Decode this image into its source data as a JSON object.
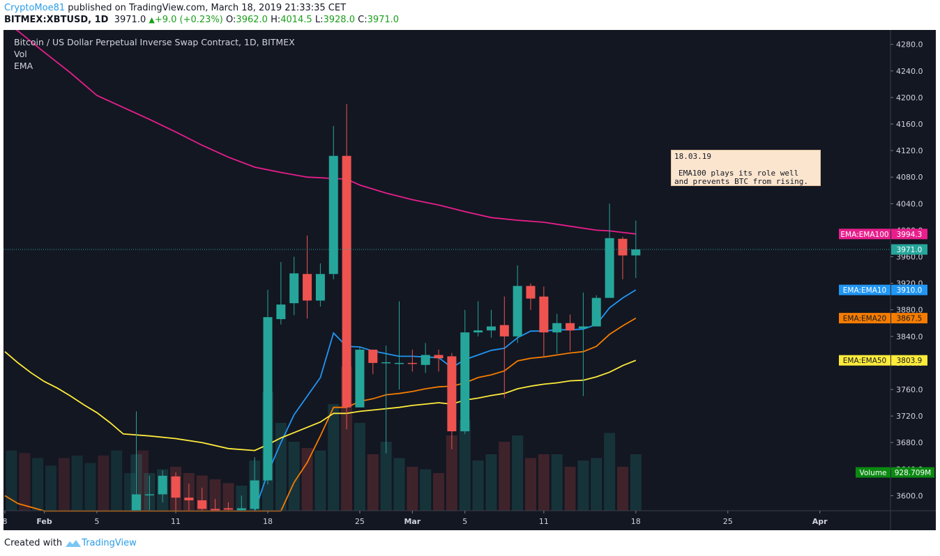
{
  "header": {
    "author": "CryptoMoe81",
    "published": "published on TradingView.com, March 18, 2019 21:33:35 CET",
    "symbol": "BITMEX:XBTUSD, 1D",
    "last": "3971.0",
    "change": "+9.0 (+0.23%)",
    "o_label": "O:",
    "o": "3962.0",
    "h_label": "H:",
    "h": "4014.5",
    "l_label": "L:",
    "l": "3928.0",
    "c_label": "C:",
    "c": "3971.0"
  },
  "legend": {
    "title": "Bitcoin / US Dollar Perpetual Inverse Swap Contract, 1D, BITMEX",
    "vol": "Vol",
    "ema": "EMA"
  },
  "annotation": {
    "date": "18.03.19",
    "text_line1": "EMA100 plays its role well",
    "text_line2": "and prevents BTC from rising."
  },
  "footer": {
    "created": "Created with",
    "brand": "TradingView"
  },
  "colors": {
    "background": "#131722",
    "up": "#26a69a",
    "down": "#ef5350",
    "ema10": "#2196f3",
    "ema20": "#f57c00",
    "ema50": "#ffeb3b",
    "ema100": "#e91e8c",
    "volume_badge": "#0b8a12"
  },
  "chart_data": {
    "type": "candlestick",
    "title": "Bitcoin / US Dollar Perpetual Inverse Swap Contract, 1D, BITMEX",
    "ylim": [
      3577,
      4297
    ],
    "y_ticks": [
      3600,
      3640,
      3680,
      3720,
      3760,
      3800,
      3840,
      3880,
      3920,
      3960,
      4000,
      4040,
      4080,
      4120,
      4160,
      4200,
      4240,
      4280
    ],
    "x_ticks": [
      {
        "date": "2019-01-29",
        "label": "8"
      },
      {
        "date": "2019-02-01",
        "label": "Feb"
      },
      {
        "date": "2019-02-05",
        "label": "5"
      },
      {
        "date": "2019-02-11",
        "label": "11"
      },
      {
        "date": "2019-02-18",
        "label": "18"
      },
      {
        "date": "2019-02-25",
        "label": "25"
      },
      {
        "date": "2019-03-01",
        "label": "Mar"
      },
      {
        "date": "2019-03-05",
        "label": "5"
      },
      {
        "date": "2019-03-11",
        "label": "11"
      },
      {
        "date": "2019-03-18",
        "label": "18"
      },
      {
        "date": "2019-03-25",
        "label": "25"
      },
      {
        "date": "2019-04-01",
        "label": "Apr"
      }
    ],
    "candles": [
      {
        "date": "2019-02-08",
        "o": 3577,
        "h": 3727,
        "l": 3577,
        "c": 3602,
        "v": 0.45
      },
      {
        "date": "2019-02-09",
        "o": 3602,
        "h": 3630,
        "l": 3577,
        "c": 3602,
        "v": 0.3
      },
      {
        "date": "2019-02-10",
        "o": 3602,
        "h": 3638,
        "l": 3590,
        "c": 3630,
        "v": 0.33
      },
      {
        "date": "2019-02-11",
        "o": 3629,
        "h": 3635,
        "l": 3577,
        "c": 3597,
        "v": 0.35
      },
      {
        "date": "2019-02-12",
        "o": 3597,
        "h": 3618,
        "l": 3577,
        "c": 3593,
        "v": 0.3
      },
      {
        "date": "2019-02-13",
        "o": 3593,
        "h": 3612,
        "l": 3577,
        "c": 3580,
        "v": 0.28
      },
      {
        "date": "2019-02-14",
        "o": 3580,
        "h": 3595,
        "l": 3577,
        "c": 3577,
        "v": 0.25
      },
      {
        "date": "2019-02-15",
        "o": 3581,
        "h": 3590,
        "l": 3577,
        "c": 3579,
        "v": 0.22
      },
      {
        "date": "2019-02-16",
        "o": 3578,
        "h": 3600,
        "l": 3577,
        "c": 3581,
        "v": 0.2
      },
      {
        "date": "2019-02-17",
        "o": 3580,
        "h": 3658,
        "l": 3577,
        "c": 3623,
        "v": 0.4
      },
      {
        "date": "2019-02-18",
        "o": 3623,
        "h": 3910,
        "l": 3617,
        "c": 3869,
        "v": 0.95
      },
      {
        "date": "2019-02-19",
        "o": 3866,
        "h": 3952,
        "l": 3858,
        "c": 3888,
        "v": 0.7
      },
      {
        "date": "2019-02-20",
        "o": 3890,
        "h": 3960,
        "l": 3872,
        "c": 3935,
        "v": 0.55
      },
      {
        "date": "2019-02-21",
        "o": 3934,
        "h": 3992,
        "l": 3867,
        "c": 3894,
        "v": 0.5
      },
      {
        "date": "2019-02-22",
        "o": 3894,
        "h": 3950,
        "l": 3885,
        "c": 3934,
        "v": 0.48
      },
      {
        "date": "2019-02-23",
        "o": 3934,
        "h": 4157,
        "l": 3926,
        "c": 4112,
        "v": 0.85
      },
      {
        "date": "2019-02-24",
        "o": 4112,
        "h": 4190,
        "l": 3700,
        "c": 3733,
        "v": 1.15
      },
      {
        "date": "2019-02-25",
        "o": 3733,
        "h": 3825,
        "l": 3735,
        "c": 3820,
        "v": 0.7
      },
      {
        "date": "2019-02-26",
        "o": 3820,
        "h": 3820,
        "l": 3783,
        "c": 3800,
        "v": 0.45
      },
      {
        "date": "2019-02-27",
        "o": 3801,
        "h": 3826,
        "l": 3664,
        "c": 3801,
        "v": 0.55
      },
      {
        "date": "2019-02-28",
        "o": 3800,
        "h": 3893,
        "l": 3760,
        "c": 3800,
        "v": 0.42
      },
      {
        "date": "2019-03-01",
        "o": 3800,
        "h": 3820,
        "l": 3787,
        "c": 3799,
        "v": 0.35
      },
      {
        "date": "2019-03-02",
        "o": 3797,
        "h": 3830,
        "l": 3785,
        "c": 3812,
        "v": 0.33
      },
      {
        "date": "2019-03-03",
        "o": 3812,
        "h": 3820,
        "l": 3787,
        "c": 3807,
        "v": 0.3
      },
      {
        "date": "2019-03-04",
        "o": 3810,
        "h": 3815,
        "l": 3670,
        "c": 3697,
        "v": 0.6
      },
      {
        "date": "2019-03-05",
        "o": 3697,
        "h": 3880,
        "l": 3693,
        "c": 3846,
        "v": 0.72
      },
      {
        "date": "2019-03-06",
        "o": 3846,
        "h": 3893,
        "l": 3840,
        "c": 3849,
        "v": 0.4
      },
      {
        "date": "2019-03-07",
        "o": 3849,
        "h": 3880,
        "l": 3838,
        "c": 3855,
        "v": 0.45
      },
      {
        "date": "2019-03-08",
        "o": 3857,
        "h": 3900,
        "l": 3747,
        "c": 3840,
        "v": 0.55
      },
      {
        "date": "2019-03-09",
        "o": 3840,
        "h": 3947,
        "l": 3830,
        "c": 3916,
        "v": 0.6
      },
      {
        "date": "2019-03-10",
        "o": 3916,
        "h": 3920,
        "l": 3880,
        "c": 3897,
        "v": 0.42
      },
      {
        "date": "2019-03-11",
        "o": 3900,
        "h": 3915,
        "l": 3810,
        "c": 3846,
        "v": 0.45
      },
      {
        "date": "2019-03-12",
        "o": 3846,
        "h": 3874,
        "l": 3814,
        "c": 3860,
        "v": 0.45
      },
      {
        "date": "2019-03-13",
        "o": 3860,
        "h": 3873,
        "l": 3818,
        "c": 3849,
        "v": 0.35
      },
      {
        "date": "2019-03-14",
        "o": 3852,
        "h": 3906,
        "l": 3750,
        "c": 3855,
        "v": 0.4
      },
      {
        "date": "2019-03-15",
        "o": 3855,
        "h": 3902,
        "l": 3855,
        "c": 3898,
        "v": 0.42
      },
      {
        "date": "2019-03-16",
        "o": 3898,
        "h": 4040,
        "l": 3898,
        "c": 3988,
        "v": 0.62
      },
      {
        "date": "2019-03-17",
        "o": 3987,
        "h": 3990,
        "l": 3926,
        "c": 3962,
        "v": 0.35
      },
      {
        "date": "2019-03-18",
        "o": 3962,
        "h": 4014.5,
        "l": 3928,
        "c": 3971,
        "v": 0.45
      }
    ],
    "volume_bars_before": [
      0.48,
      0.46,
      0.42,
      0.36,
      0.42,
      0.44,
      0.38,
      0.44,
      0.48,
      0.3,
      0.48
    ],
    "series": [
      {
        "name": "EMA:EMA10",
        "color": "#2196f3",
        "last": "3910.0",
        "points": [
          [
            "2019-02-17",
            3577
          ],
          [
            "2019-02-18",
            3634
          ],
          [
            "2019-02-19",
            3680
          ],
          [
            "2019-02-20",
            3722
          ],
          [
            "2019-02-21",
            3750
          ],
          [
            "2019-02-22",
            3778
          ],
          [
            "2019-02-23",
            3845
          ],
          [
            "2019-02-24",
            3825
          ],
          [
            "2019-02-25",
            3824
          ],
          [
            "2019-02-26",
            3818
          ],
          [
            "2019-02-28",
            3810
          ],
          [
            "2019-03-01",
            3810
          ],
          [
            "2019-03-02",
            3809
          ],
          [
            "2019-03-03",
            3808
          ],
          [
            "2019-03-04",
            3793
          ],
          [
            "2019-03-05",
            3805
          ],
          [
            "2019-03-06",
            3812
          ],
          [
            "2019-03-07",
            3819
          ],
          [
            "2019-03-08",
            3822
          ],
          [
            "2019-03-09",
            3838
          ],
          [
            "2019-03-10",
            3848
          ],
          [
            "2019-03-11",
            3848
          ],
          [
            "2019-03-12",
            3850
          ],
          [
            "2019-03-13",
            3850
          ],
          [
            "2019-03-14",
            3851
          ],
          [
            "2019-03-15",
            3858
          ],
          [
            "2019-03-16",
            3883
          ],
          [
            "2019-03-17",
            3898
          ],
          [
            "2019-03-18",
            3910
          ]
        ]
      },
      {
        "name": "EMA:EMA20",
        "color": "#f57c00",
        "last": "3867.5",
        "points": [
          [
            "2019-01-29",
            3600
          ],
          [
            "2019-01-30",
            3588
          ],
          [
            "2019-02-01",
            3577
          ],
          [
            "2019-02-19",
            3577
          ],
          [
            "2019-02-20",
            3620
          ],
          [
            "2019-02-21",
            3650
          ],
          [
            "2019-02-22",
            3690
          ],
          [
            "2019-02-23",
            3733
          ],
          [
            "2019-02-24",
            3733
          ],
          [
            "2019-02-25",
            3742
          ],
          [
            "2019-02-26",
            3746
          ],
          [
            "2019-02-27",
            3752
          ],
          [
            "2019-02-28",
            3754
          ],
          [
            "2019-03-01",
            3757
          ],
          [
            "2019-03-02",
            3761
          ],
          [
            "2019-03-03",
            3764
          ],
          [
            "2019-03-04",
            3765
          ],
          [
            "2019-03-05",
            3770
          ],
          [
            "2019-03-06",
            3778
          ],
          [
            "2019-03-07",
            3782
          ],
          [
            "2019-03-08",
            3788
          ],
          [
            "2019-03-09",
            3803
          ],
          [
            "2019-03-10",
            3807
          ],
          [
            "2019-03-11",
            3809
          ],
          [
            "2019-03-12",
            3812
          ],
          [
            "2019-03-13",
            3815
          ],
          [
            "2019-03-14",
            3817
          ],
          [
            "2019-03-15",
            3825
          ],
          [
            "2019-03-16",
            3843
          ],
          [
            "2019-03-17",
            3856
          ],
          [
            "2019-03-18",
            3867.5
          ]
        ]
      },
      {
        "name": "EMA:EMA50",
        "color": "#ffeb3b",
        "last": "3803.9",
        "points": [
          [
            "2019-01-29",
            3817
          ],
          [
            "2019-01-30",
            3800
          ],
          [
            "2019-01-31",
            3785
          ],
          [
            "2019-02-01",
            3772
          ],
          [
            "2019-02-02",
            3762
          ],
          [
            "2019-02-03",
            3750
          ],
          [
            "2019-02-04",
            3737
          ],
          [
            "2019-02-05",
            3725
          ],
          [
            "2019-02-06",
            3710
          ],
          [
            "2019-02-07",
            3693
          ],
          [
            "2019-02-09",
            3690
          ],
          [
            "2019-02-11",
            3686
          ],
          [
            "2019-02-13",
            3680
          ],
          [
            "2019-02-15",
            3671
          ],
          [
            "2019-02-17",
            3668
          ],
          [
            "2019-02-18",
            3677
          ],
          [
            "2019-02-19",
            3687
          ],
          [
            "2019-02-20",
            3695
          ],
          [
            "2019-02-21",
            3703
          ],
          [
            "2019-02-22",
            3711
          ],
          [
            "2019-02-23",
            3724
          ],
          [
            "2019-02-24",
            3724
          ],
          [
            "2019-02-25",
            3727
          ],
          [
            "2019-02-26",
            3729
          ],
          [
            "2019-02-28",
            3733
          ],
          [
            "2019-03-01",
            3736
          ],
          [
            "2019-03-02",
            3738
          ],
          [
            "2019-03-03",
            3740
          ],
          [
            "2019-03-04",
            3738
          ],
          [
            "2019-03-05",
            3744
          ],
          [
            "2019-03-06",
            3747
          ],
          [
            "2019-03-07",
            3751
          ],
          [
            "2019-03-08",
            3754
          ],
          [
            "2019-03-09",
            3761
          ],
          [
            "2019-03-10",
            3765
          ],
          [
            "2019-03-11",
            3768
          ],
          [
            "2019-03-12",
            3770
          ],
          [
            "2019-03-13",
            3773
          ],
          [
            "2019-03-14",
            3774
          ],
          [
            "2019-03-15",
            3779
          ],
          [
            "2019-03-16",
            3786
          ],
          [
            "2019-03-17",
            3796
          ],
          [
            "2019-03-18",
            3803.9
          ]
        ]
      },
      {
        "name": "EMA:EMA100",
        "color": "#e91e8c",
        "last": "3994.3",
        "points": [
          [
            "2019-01-29",
            4315
          ],
          [
            "2019-01-30",
            4300
          ],
          [
            "2019-02-01",
            4268
          ],
          [
            "2019-02-03",
            4237
          ],
          [
            "2019-02-05",
            4203
          ],
          [
            "2019-02-07",
            4185
          ],
          [
            "2019-02-09",
            4167
          ],
          [
            "2019-02-11",
            4148
          ],
          [
            "2019-02-13",
            4128
          ],
          [
            "2019-02-15",
            4110
          ],
          [
            "2019-02-17",
            4095
          ],
          [
            "2019-02-19",
            4087
          ],
          [
            "2019-02-21",
            4080
          ],
          [
            "2019-02-23",
            4078
          ],
          [
            "2019-02-24",
            4077
          ],
          [
            "2019-02-25",
            4068
          ],
          [
            "2019-02-27",
            4056
          ],
          [
            "2019-03-01",
            4046
          ],
          [
            "2019-03-03",
            4038
          ],
          [
            "2019-03-05",
            4028
          ],
          [
            "2019-03-07",
            4019
          ],
          [
            "2019-03-09",
            4015
          ],
          [
            "2019-03-11",
            4012
          ],
          [
            "2019-03-13",
            4006
          ],
          [
            "2019-03-15",
            4000
          ],
          [
            "2019-03-16",
            3999
          ],
          [
            "2019-03-18",
            3994.3
          ]
        ]
      }
    ],
    "last_price": "3971.0",
    "volume_last": "928.709M",
    "volume_label": "Volume"
  }
}
